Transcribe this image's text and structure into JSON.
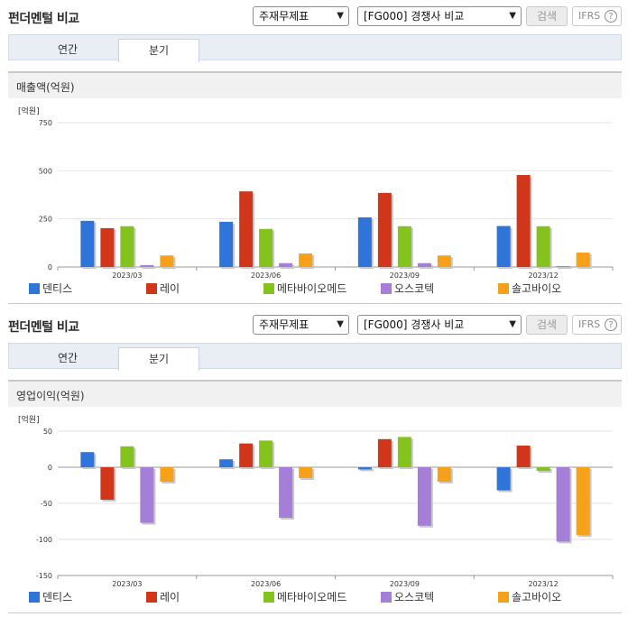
{
  "panels": [
    {
      "title": "펀더멘털 비교",
      "select1": "주재무제표",
      "select2": "[FG000] 경쟁사 비교",
      "search_label": "검색",
      "ifrs_label": "IFRS",
      "help_label": "?",
      "tabs": [
        "연간",
        "분기"
      ],
      "active_tab": "분기",
      "chart_title": "매출액(억원)"
    },
    {
      "title": "펀더멘털 비교",
      "select1": "주재무제표",
      "select2": "[FG000] 경쟁사 비교",
      "search_label": "검색",
      "ifrs_label": "IFRS",
      "help_label": "?",
      "tabs": [
        "연간",
        "분기"
      ],
      "active_tab": "분기",
      "chart_title": "영업이익(억원)"
    }
  ],
  "chart_data": [
    {
      "type": "bar",
      "title": "매출액(억원)",
      "ylabel": "[억원]",
      "categories": [
        "2023/03",
        "2023/06",
        "2023/09",
        "2023/12"
      ],
      "ylim": [
        0,
        750
      ],
      "yticks": [
        0,
        250,
        500,
        750
      ],
      "grid": true,
      "legend": "bottom",
      "series": [
        {
          "name": "덴티스",
          "color": "#2f74d8",
          "values": [
            240,
            235,
            258,
            213
          ]
        },
        {
          "name": "레이",
          "color": "#d2361a",
          "values": [
            202,
            393,
            385,
            478
          ]
        },
        {
          "name": "메타바이오메드",
          "color": "#84c21d",
          "values": [
            212,
            198,
            212,
            212
          ]
        },
        {
          "name": "오스코텍",
          "color": "#a57ed8",
          "values": [
            10,
            20,
            20,
            5
          ]
        },
        {
          "name": "솔고바이오",
          "color": "#f7a11a",
          "values": [
            60,
            70,
            60,
            75
          ]
        }
      ]
    },
    {
      "type": "bar",
      "title": "영업이익(억원)",
      "ylabel": "[억원]",
      "categories": [
        "2023/03",
        "2023/06",
        "2023/09",
        "2023/12"
      ],
      "ylim": [
        -150,
        50
      ],
      "yticks": [
        -150,
        -100,
        -50,
        0,
        50
      ],
      "grid": true,
      "legend": "bottom",
      "series": [
        {
          "name": "덴티스",
          "color": "#2f74d8",
          "values": [
            21,
            11,
            -3,
            -32
          ]
        },
        {
          "name": "레이",
          "color": "#d2361a",
          "values": [
            -45,
            33,
            39,
            30
          ]
        },
        {
          "name": "메타바이오메드",
          "color": "#84c21d",
          "values": [
            29,
            37,
            42,
            -5
          ]
        },
        {
          "name": "오스코텍",
          "color": "#a57ed8",
          "values": [
            -77,
            -70,
            -81,
            -103
          ]
        },
        {
          "name": "솔고바이오",
          "color": "#f7a11a",
          "values": [
            -20,
            -15,
            -20,
            -94
          ]
        }
      ]
    }
  ]
}
